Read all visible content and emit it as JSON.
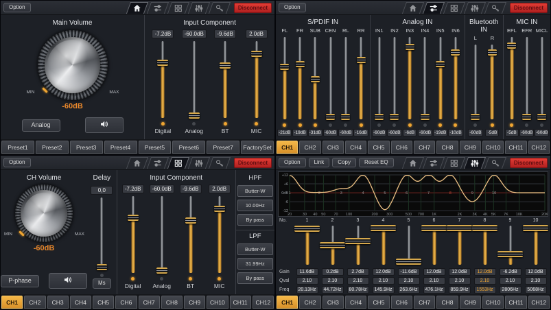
{
  "accent_color": "#f0a632",
  "disconnect_color": "#d02c2c",
  "common": {
    "option": "Option",
    "disconnect": "Disconnect"
  },
  "channel_tabs": [
    {
      "label": "CH1",
      "active": true
    },
    {
      "label": "CH2"
    },
    {
      "label": "CH3"
    },
    {
      "label": "CH4"
    },
    {
      "label": "CH5"
    },
    {
      "label": "CH6"
    },
    {
      "label": "CH7"
    },
    {
      "label": "CH8"
    },
    {
      "label": "CH9"
    },
    {
      "label": "CH10"
    },
    {
      "label": "CH11"
    },
    {
      "label": "CH12"
    }
  ],
  "panel_home": {
    "nav": {
      "home": true
    },
    "main_volume": {
      "title": "Main Volume",
      "min": "MIN",
      "max": "MAX",
      "value": "-60dB",
      "source": "Analog"
    },
    "input_component": {
      "title": "Input Component",
      "channels": [
        {
          "label": "Digital",
          "value": "-7.2dB",
          "gain_db": -7.2,
          "led": true
        },
        {
          "label": "Analog",
          "value": "-60.0dB",
          "gain_db": -60,
          "led": false
        },
        {
          "label": "BT",
          "value": "-9.6dB",
          "gain_db": -9.6,
          "led": true
        },
        {
          "label": "MIC",
          "value": "2.0dB",
          "gain_db": 2,
          "led": true
        }
      ]
    },
    "presets": [
      {
        "label": "Preset1"
      },
      {
        "label": "Preset2"
      },
      {
        "label": "Preset3"
      },
      {
        "label": "Preset4"
      },
      {
        "label": "Preset5"
      },
      {
        "label": "Preset6"
      },
      {
        "label": "Preset7"
      },
      {
        "label": "FactorySet"
      }
    ]
  },
  "panel_mixer": {
    "nav": {
      "mixer": true
    },
    "sections": [
      {
        "title": "S/PDIF IN",
        "channels": [
          {
            "label": "FL",
            "value": "-21dB",
            "gain_db": -21,
            "led": true
          },
          {
            "label": "FR",
            "value": "-19dB",
            "gain_db": -19,
            "led": true
          },
          {
            "label": "SUB",
            "value": "-31dB",
            "gain_db": -31,
            "led": true
          },
          {
            "label": "CEN",
            "value": "-60dB",
            "gain_db": -60,
            "led": false
          },
          {
            "label": "RL",
            "value": "-60dB",
            "gain_db": -60,
            "led": false
          },
          {
            "label": "RR",
            "value": "-16dB",
            "gain_db": -16,
            "led": true
          }
        ]
      },
      {
        "title": "Analog IN",
        "channels": [
          {
            "label": "IN1",
            "value": "-60dB",
            "gain_db": -60,
            "led": false
          },
          {
            "label": "IN2",
            "value": "-60dB",
            "gain_db": -60,
            "led": false
          },
          {
            "label": "IN3",
            "value": "-6dB",
            "gain_db": -6,
            "led": true
          },
          {
            "label": "IN4",
            "value": "-60dB",
            "gain_db": -60,
            "led": false
          },
          {
            "label": "IN5",
            "value": "-19dB",
            "gain_db": -19,
            "led": true
          },
          {
            "label": "IN6",
            "value": "-10dB",
            "gain_db": -10,
            "led": true
          }
        ]
      },
      {
        "title": "Bluetooth IN",
        "channels": [
          {
            "label": "L",
            "value": "-60dB",
            "gain_db": -60,
            "led": false
          },
          {
            "label": "R",
            "value": "-5dB",
            "gain_db": -5,
            "led": true
          }
        ]
      },
      {
        "title": "MIC IN",
        "channels": [
          {
            "label": "EFL",
            "value": "-5dB",
            "gain_db": -5,
            "led": true
          },
          {
            "label": "EFR",
            "value": "-60dB",
            "gain_db": -60,
            "led": false
          },
          {
            "label": "MICL",
            "value": "-60dB",
            "gain_db": -60,
            "led": false
          }
        ]
      }
    ]
  },
  "panel_channel": {
    "nav": {
      "grid": true
    },
    "ch_volume": {
      "title": "CH Volume",
      "min": "MIN",
      "max": "MAX",
      "value": "-60dB",
      "phase": "P-phase"
    },
    "delay": {
      "title": "Delay",
      "value": "0,0",
      "unit": "Ms",
      "ms": 0
    },
    "input_component": {
      "title": "Input Component",
      "channels": [
        {
          "label": "Digital",
          "value": "-7.2dB",
          "gain_db": -7.2,
          "led": true
        },
        {
          "label": "Analog",
          "value": "-60.0dB",
          "gain_db": -60,
          "led": false
        },
        {
          "label": "BT",
          "value": "-9.6dB",
          "gain_db": -9.6,
          "led": true
        },
        {
          "label": "MIC",
          "value": "2.0dB",
          "gain_db": 2,
          "led": true
        }
      ]
    },
    "hpf": {
      "title": "HPF",
      "type": "Butter-W",
      "freq": "10.00Hz",
      "bypass": "By pass"
    },
    "lpf": {
      "title": "LPF",
      "type": "Butter-W",
      "freq": "31.99Hz",
      "bypass": "By pass"
    }
  },
  "panel_eq": {
    "nav": {
      "eq": true
    },
    "toolbar": {
      "link": "Link",
      "copy": "Copy",
      "reset": "Reset EQ"
    },
    "row_labels": {
      "no": "No.",
      "gain": "Gain",
      "qval": "Qval",
      "freq": "Freq"
    },
    "bands": [
      {
        "no": "1",
        "gain": "11.6dB",
        "gain_db": 11.6,
        "qval": "2.10",
        "freq": "20.13Hz"
      },
      {
        "no": "2",
        "gain": "0.2dB",
        "gain_db": 0.2,
        "qval": "2.10",
        "freq": "44.72Hz"
      },
      {
        "no": "3",
        "gain": "2.7dB",
        "gain_db": 2.7,
        "qval": "2.10",
        "freq": "80.78Hz"
      },
      {
        "no": "4",
        "gain": "12.0dB",
        "gain_db": 12,
        "qval": "2.10",
        "freq": "145.9Hz"
      },
      {
        "no": "5",
        "gain": "-11.6dB",
        "gain_db": -11.6,
        "qval": "2.10",
        "freq": "263.6Hz"
      },
      {
        "no": "6",
        "gain": "12.0dB",
        "gain_db": 12,
        "qval": "2.10",
        "freq": "476.1Hz"
      },
      {
        "no": "7",
        "gain": "12.0dB",
        "gain_db": 12,
        "qval": "2.10",
        "freq": "859.9Hz"
      },
      {
        "no": "8",
        "gain": "12.0dB",
        "gain_db": 12,
        "qval": "2.10",
        "freq": "1553Hz",
        "selected": true
      },
      {
        "no": "9",
        "gain": "-6.2dB",
        "gain_db": -6.2,
        "qval": "2.10",
        "freq": "2806Hz"
      },
      {
        "no": "10",
        "gain": "12.0dB",
        "gain_db": 12,
        "qval": "2.10",
        "freq": "5068Hz"
      }
    ]
  },
  "chart_data": {
    "type": "line",
    "title": "EQ response curve",
    "x_scale": "log",
    "xlim_hz": [
      20,
      20000
    ],
    "ylim": [
      -12,
      12
    ],
    "curve_color": "#ecc084",
    "y_ticks": [
      {
        "label": "+12",
        "db": 12
      },
      {
        "label": "+6",
        "db": 6
      },
      {
        "label": "0dB",
        "db": 0
      },
      {
        "label": "-6",
        "db": -6
      },
      {
        "label": "-12",
        "db": -12
      }
    ],
    "x_ticks": [
      {
        "label": "20",
        "hz": 20
      },
      {
        "label": "30",
        "hz": 30
      },
      {
        "label": "40",
        "hz": 40
      },
      {
        "label": "50",
        "hz": 50
      },
      {
        "label": "70",
        "hz": 70
      },
      {
        "label": "100",
        "hz": 100
      },
      {
        "label": "200",
        "hz": 200
      },
      {
        "label": "300",
        "hz": 300
      },
      {
        "label": "500",
        "hz": 500
      },
      {
        "label": "700",
        "hz": 700
      },
      {
        "label": "1K",
        "hz": 1000
      },
      {
        "label": "2K",
        "hz": 2000
      },
      {
        "label": "3K",
        "hz": 3000
      },
      {
        "label": "4K",
        "hz": 4000
      },
      {
        "label": "5K",
        "hz": 5000
      },
      {
        "label": "7K",
        "hz": 7000
      },
      {
        "label": "10K",
        "hz": 10000
      },
      {
        "label": "20K",
        "hz": 20000
      }
    ],
    "bands": [
      {
        "no": "1",
        "freq_hz": 20.13,
        "gain_db": 11.6,
        "q": 2.1
      },
      {
        "no": "2",
        "freq_hz": 44.72,
        "gain_db": 0.2,
        "q": 2.1
      },
      {
        "no": "3",
        "freq_hz": 80.78,
        "gain_db": 2.7,
        "q": 2.1
      },
      {
        "no": "4",
        "freq_hz": 145.9,
        "gain_db": 12,
        "q": 2.1
      },
      {
        "no": "5",
        "freq_hz": 263.6,
        "gain_db": -11.6,
        "q": 2.1
      },
      {
        "no": "6",
        "freq_hz": 476.1,
        "gain_db": 12,
        "q": 2.1
      },
      {
        "no": "7",
        "freq_hz": 859.9,
        "gain_db": 12,
        "q": 2.1
      },
      {
        "no": "8",
        "freq_hz": 1553,
        "gain_db": 12,
        "q": 2.1,
        "selected": true
      },
      {
        "no": "9",
        "freq_hz": 2806,
        "gain_db": -6.2,
        "q": 2.1
      },
      {
        "no": "10",
        "freq_hz": 5068,
        "gain_db": 12,
        "q": 2.1
      }
    ]
  }
}
